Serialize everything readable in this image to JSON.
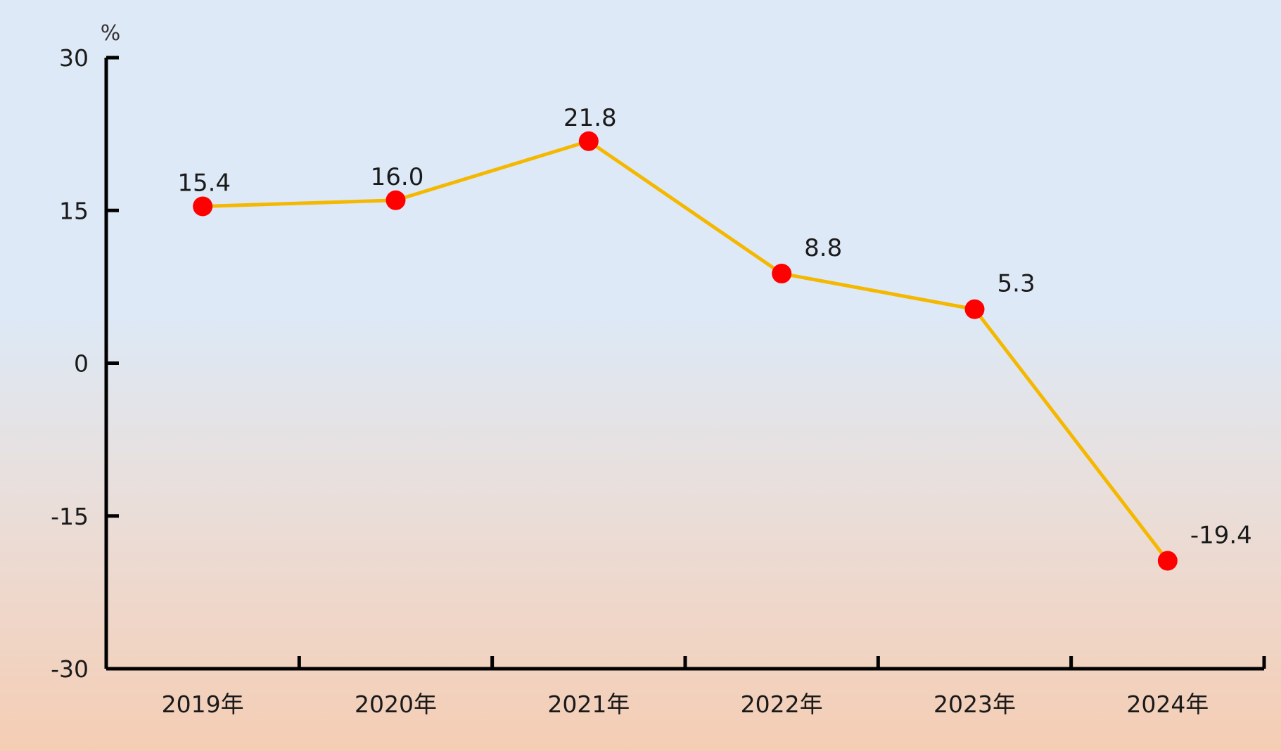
{
  "chart_data": {
    "type": "line",
    "title": "",
    "xlabel": "",
    "ylabel": "",
    "y_unit": "%",
    "categories": [
      "2019年",
      "2020年",
      "2021年",
      "2022年",
      "2023年",
      "2024年"
    ],
    "series": [
      {
        "values": [
          15.4,
          16.0,
          21.8,
          8.8,
          5.3,
          -19.4
        ],
        "line_color": "#f5b800",
        "marker_color": "#ff0000"
      }
    ],
    "data_labels": [
      "15.4",
      "16.0",
      "21.8",
      "8.8",
      "5.3",
      "-19.4"
    ],
    "ylim": [
      -30,
      30
    ],
    "yticks": [
      30,
      15,
      0,
      -15,
      -30
    ],
    "ytick_labels": [
      "30",
      "15",
      "0",
      "-15",
      "-30"
    ],
    "grid": false,
    "legend": "none"
  }
}
